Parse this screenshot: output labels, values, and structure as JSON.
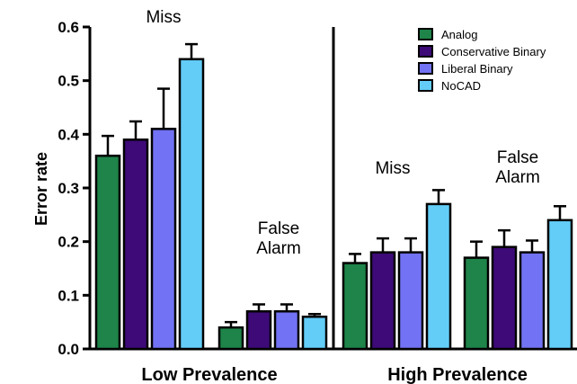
{
  "chart_data": {
    "type": "bar",
    "ylabel": "Error rate",
    "ylim": [
      0,
      0.6
    ],
    "yticks": [
      "0.0",
      "0.1",
      "0.2",
      "0.3",
      "0.4",
      "0.5",
      "0.6"
    ],
    "ytick_values": [
      0,
      0.1,
      0.2,
      0.3,
      0.4,
      0.5,
      0.6
    ],
    "grid": false,
    "legend_position": "top-right",
    "series": [
      {
        "name": "Analog",
        "color": "#1e8449"
      },
      {
        "name": "Conservative Binary",
        "color": "#3d0a78"
      },
      {
        "name": "Liberal Binary",
        "color": "#7272f4"
      },
      {
        "name": "NoCAD",
        "color": "#63cdf8"
      }
    ],
    "groups": [
      {
        "label": "Low Prevalence",
        "clusters": [
          {
            "annotation": [
              "Miss"
            ],
            "values": [
              0.36,
              0.39,
              0.41,
              0.54
            ],
            "errors": [
              0.037,
              0.034,
              0.075,
              0.028
            ]
          },
          {
            "annotation": [
              "False",
              "Alarm"
            ],
            "values": [
              0.04,
              0.07,
              0.07,
              0.06
            ],
            "errors": [
              0.01,
              0.013,
              0.013,
              0.005
            ]
          }
        ]
      },
      {
        "label": "High Prevalence",
        "clusters": [
          {
            "annotation": [
              "Miss"
            ],
            "values": [
              0.16,
              0.18,
              0.18,
              0.27
            ],
            "errors": [
              0.017,
              0.026,
              0.026,
              0.026
            ]
          },
          {
            "annotation": [
              "False",
              "Alarm"
            ],
            "values": [
              0.17,
              0.19,
              0.18,
              0.24
            ],
            "errors": [
              0.03,
              0.031,
              0.022,
              0.026
            ]
          }
        ]
      }
    ]
  }
}
